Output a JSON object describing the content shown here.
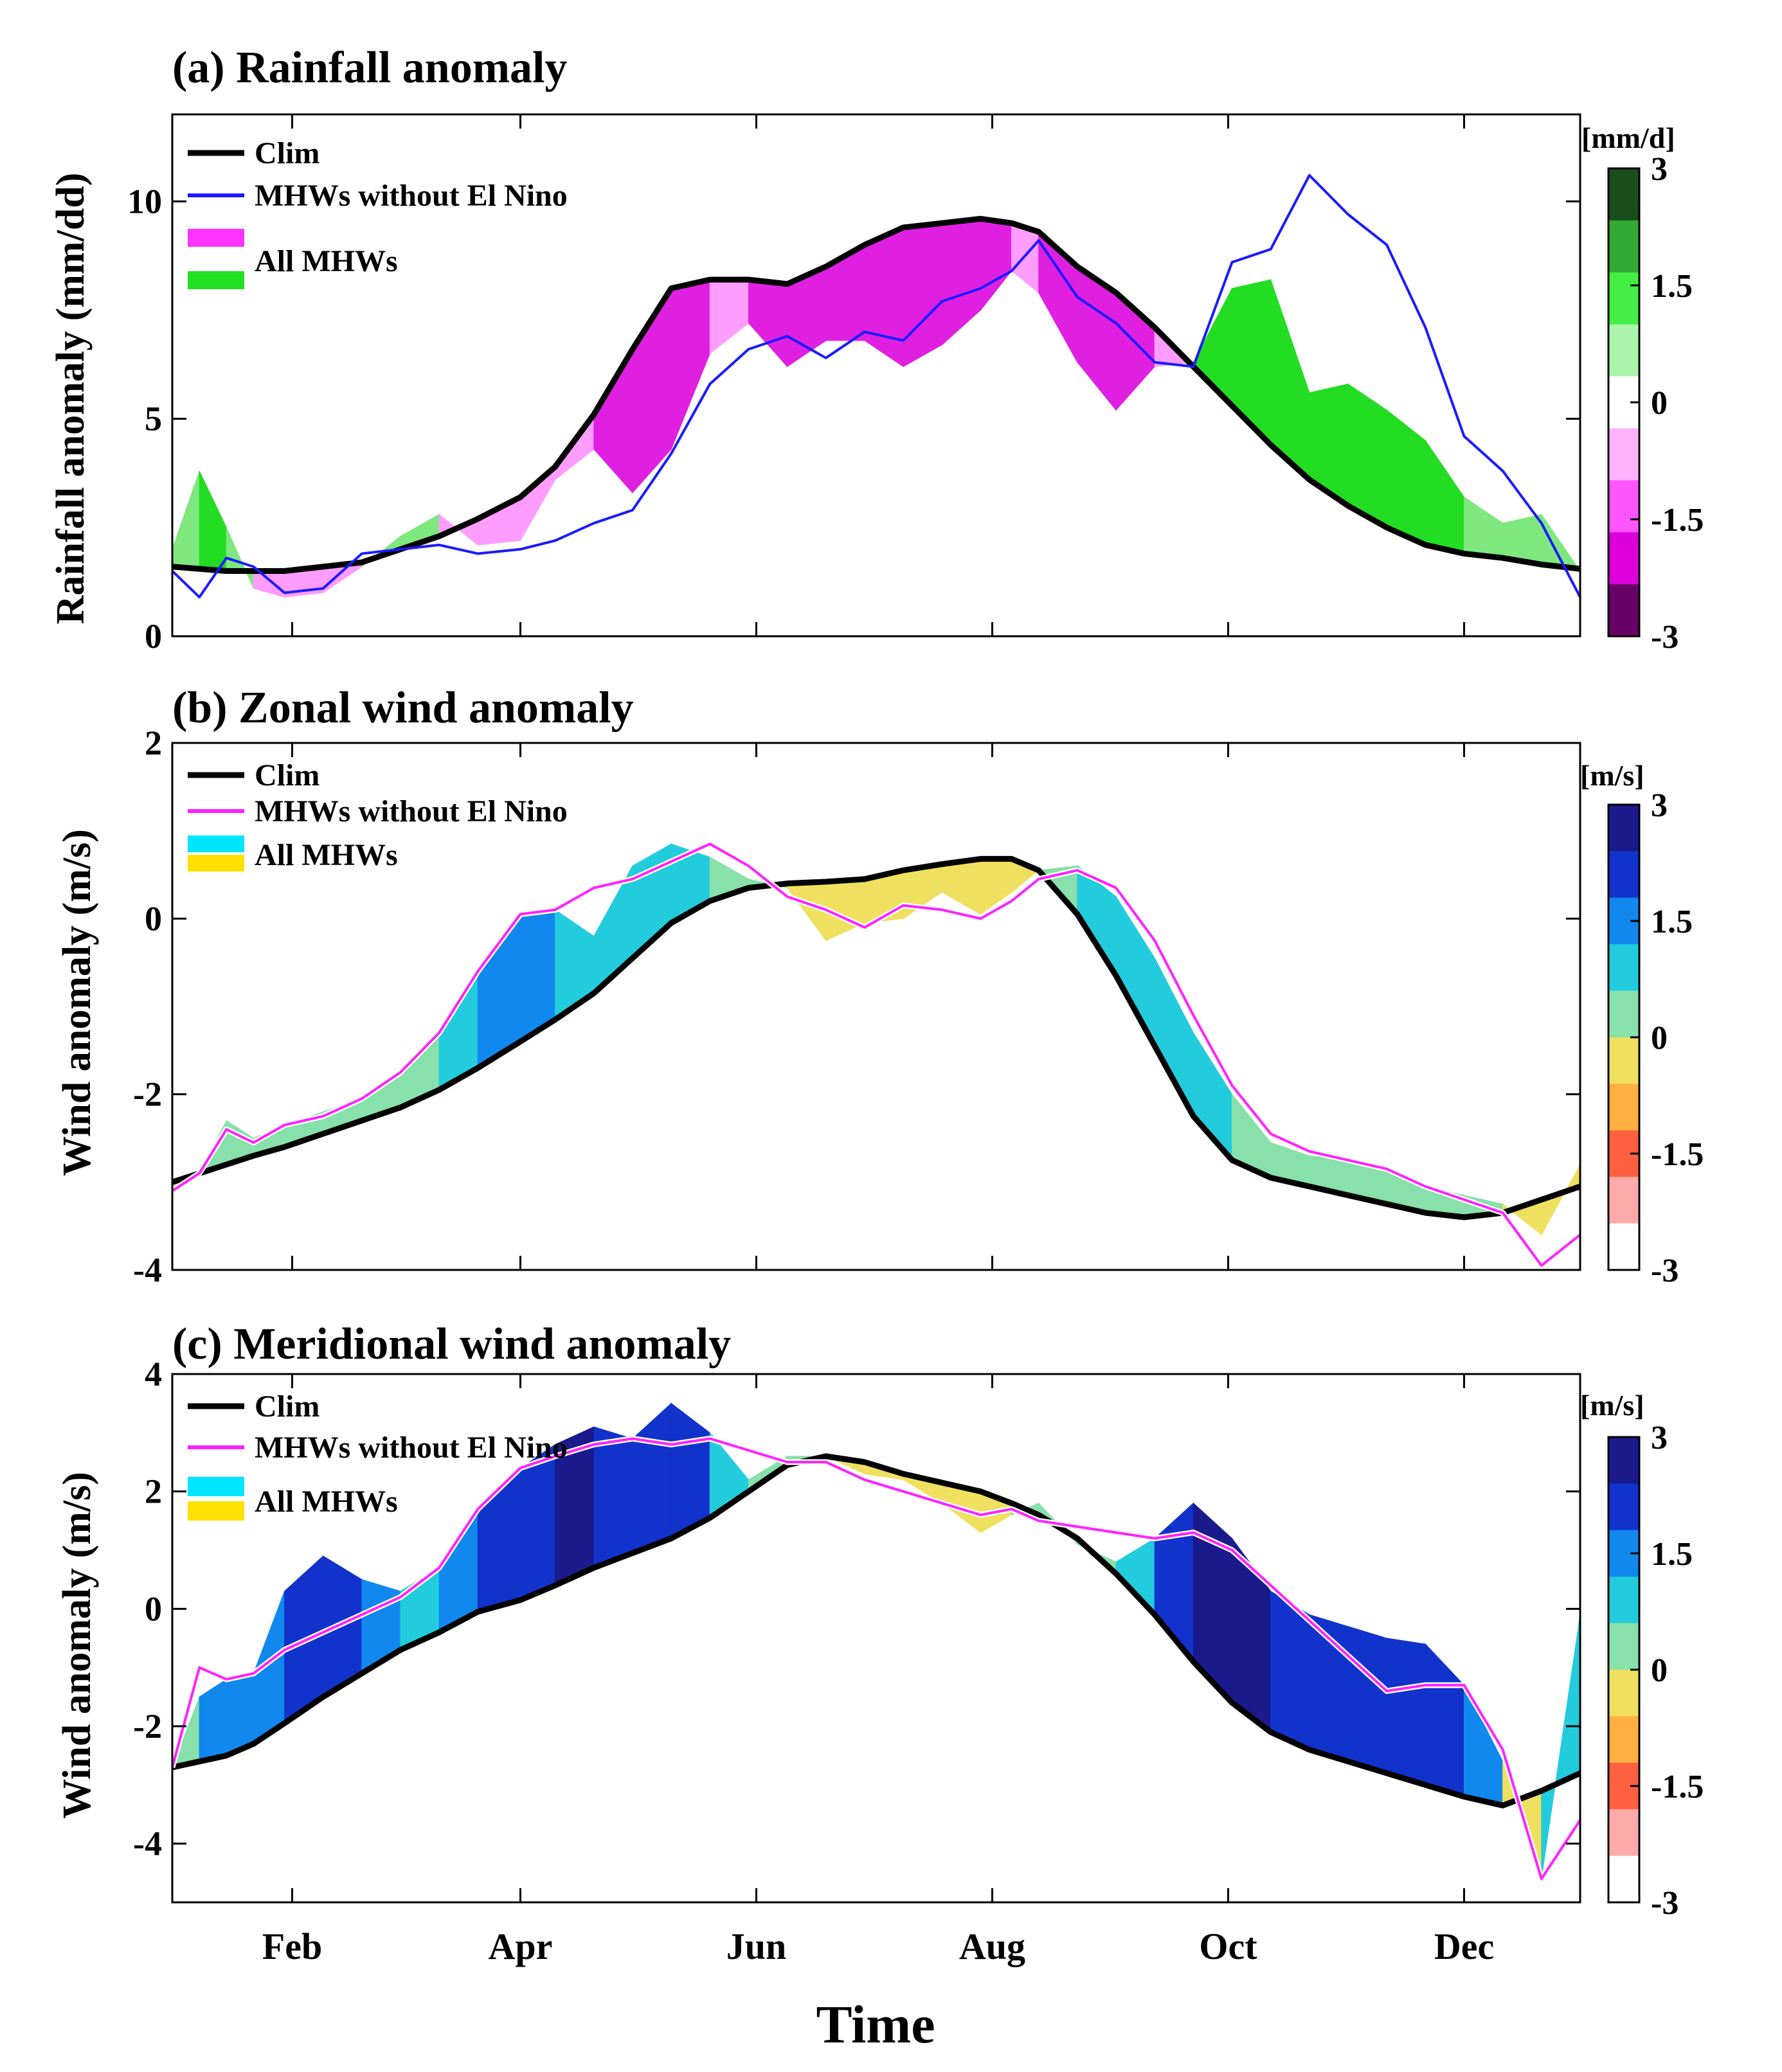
{
  "figure": {
    "xlabel": "Time"
  },
  "chart_data": [
    {
      "type": "area",
      "panel": "a",
      "title": "(a) Rainfall anomaly",
      "ylabel": "Rainfall anomaly (mm/dd)",
      "xlabel": "Time",
      "xlim": [
        1,
        365
      ],
      "ylim": [
        0,
        12
      ],
      "yticks": [
        0,
        5,
        10
      ],
      "months": [
        {
          "label": "Feb",
          "day": 32
        },
        {
          "label": "Apr",
          "day": 91
        },
        {
          "label": "Jun",
          "day": 152
        },
        {
          "label": "Aug",
          "day": 213
        },
        {
          "label": "Oct",
          "day": 274
        },
        {
          "label": "Dec",
          "day": 335
        }
      ],
      "legend": [
        "Clim",
        "MHWs without El Nino",
        "All MHWs"
      ],
      "legend_colors": {
        "clim": "#000000",
        "line": "#1a1aff",
        "fill_a": "#ff33ff",
        "fill_b": "#22e022"
      },
      "colorbar": {
        "unit": "[mm/d]",
        "range": [
          -3,
          3
        ],
        "ticks": [
          "3",
          "1.5",
          "0",
          "-1.5",
          "-3"
        ],
        "colors": [
          "#1a4d1a",
          "#33aa33",
          "#44ee44",
          "#aaf5aa",
          "#ffffff",
          "#ffb3ff",
          "#ff55ff",
          "#dd00dd",
          "#660066"
        ]
      },
      "x": [
        1,
        8,
        15,
        22,
        30,
        40,
        50,
        60,
        70,
        80,
        91,
        100,
        110,
        120,
        130,
        140,
        150,
        160,
        170,
        180,
        190,
        200,
        210,
        218,
        225,
        235,
        245,
        255,
        265,
        275,
        285,
        295,
        305,
        315,
        325,
        335,
        345,
        355,
        365
      ],
      "clim": [
        1.6,
        1.55,
        1.5,
        1.5,
        1.5,
        1.6,
        1.7,
        2.0,
        2.3,
        2.7,
        3.2,
        3.9,
        5.1,
        6.6,
        8.0,
        8.2,
        8.2,
        8.1,
        8.5,
        9.0,
        9.4,
        9.5,
        9.6,
        9.5,
        9.3,
        8.5,
        7.9,
        7.1,
        6.2,
        5.3,
        4.4,
        3.6,
        3.0,
        2.5,
        2.1,
        1.9,
        1.8,
        1.65,
        1.55
      ],
      "all_mhws": [
        2.0,
        3.8,
        2.5,
        1.1,
        0.9,
        1.0,
        1.6,
        2.3,
        2.8,
        2.1,
        2.2,
        3.6,
        4.3,
        3.3,
        4.3,
        6.5,
        7.2,
        6.2,
        6.8,
        6.8,
        6.2,
        6.7,
        7.5,
        8.4,
        7.9,
        6.3,
        5.2,
        6.2,
        6.3,
        8.0,
        8.2,
        5.6,
        5.8,
        5.2,
        4.5,
        3.2,
        2.6,
        2.8,
        1.5
      ],
      "line": [
        1.5,
        0.9,
        1.8,
        1.6,
        1.0,
        1.1,
        1.9,
        2.0,
        2.1,
        1.9,
        2.0,
        2.2,
        2.6,
        2.9,
        4.2,
        5.8,
        6.6,
        6.9,
        6.4,
        7.0,
        6.8,
        7.7,
        8.0,
        8.4,
        9.1,
        7.8,
        7.2,
        6.3,
        6.2,
        8.6,
        8.9,
        10.6,
        9.7,
        9.0,
        7.1,
        4.6,
        3.8,
        2.6,
        0.9
      ]
    },
    {
      "type": "area",
      "panel": "b",
      "title": "(b) Zonal wind anomaly",
      "ylabel": "Wind anomaly (m/s)",
      "xlabel": "Time",
      "xlim": [
        1,
        365
      ],
      "ylim": [
        -4,
        2
      ],
      "yticks": [
        -4,
        -2,
        0,
        2
      ],
      "months": [
        {
          "label": "Feb",
          "day": 32
        },
        {
          "label": "Apr",
          "day": 91
        },
        {
          "label": "Jun",
          "day": 152
        },
        {
          "label": "Aug",
          "day": 213
        },
        {
          "label": "Oct",
          "day": 274
        },
        {
          "label": "Dec",
          "day": 335
        }
      ],
      "legend": [
        "Clim",
        "MHWs without El Nino",
        "All MHWs"
      ],
      "legend_colors": {
        "clim": "#000000",
        "line": "#ff22ff",
        "fill_a": "#00e5ff",
        "fill_b": "#ffe000"
      },
      "colorbar": {
        "unit": "[m/s]",
        "range": [
          -3,
          3
        ],
        "ticks": [
          "3",
          "1.5",
          "0",
          "-1.5",
          "-3"
        ],
        "colors": [
          "#1a1a8c",
          "#1133cc",
          "#1188ee",
          "#22ccdd",
          "#88e0aa",
          "#f0e060",
          "#ffb040",
          "#ff6040",
          "#ffaaaa",
          "#ffffff"
        ]
      },
      "x": [
        1,
        8,
        15,
        22,
        30,
        40,
        50,
        60,
        70,
        80,
        91,
        100,
        110,
        120,
        130,
        140,
        150,
        160,
        170,
        180,
        190,
        200,
        210,
        218,
        225,
        235,
        245,
        255,
        265,
        275,
        285,
        295,
        305,
        315,
        325,
        335,
        345,
        355,
        365
      ],
      "clim": [
        -3.0,
        -2.9,
        -2.8,
        -2.7,
        -2.6,
        -2.45,
        -2.3,
        -2.15,
        -1.95,
        -1.7,
        -1.4,
        -1.15,
        -0.85,
        -0.45,
        -0.05,
        0.2,
        0.35,
        0.4,
        0.42,
        0.45,
        0.55,
        0.62,
        0.68,
        0.68,
        0.55,
        0.05,
        -0.65,
        -1.45,
        -2.25,
        -2.75,
        -2.95,
        -3.05,
        -3.15,
        -3.25,
        -3.35,
        -3.4,
        -3.35,
        -3.2,
        -3.05
      ],
      "all_mhws": [
        -3.1,
        -2.9,
        -2.3,
        -2.5,
        -2.35,
        -2.2,
        -2.05,
        -1.8,
        -1.3,
        -0.6,
        0.05,
        0.1,
        -0.2,
        0.6,
        0.85,
        0.7,
        0.45,
        0.35,
        -0.25,
        -0.05,
        0.0,
        0.3,
        0.05,
        0.3,
        0.55,
        0.6,
        0.25,
        -0.45,
        -1.3,
        -2.0,
        -2.55,
        -2.7,
        -2.75,
        -2.85,
        -3.05,
        -3.15,
        -3.25,
        -3.6,
        -2.8
      ],
      "line": [
        -3.1,
        -2.9,
        -2.4,
        -2.55,
        -2.35,
        -2.25,
        -2.05,
        -1.75,
        -1.3,
        -0.6,
        0.05,
        0.1,
        0.35,
        0.45,
        0.65,
        0.85,
        0.6,
        0.25,
        0.1,
        -0.1,
        0.15,
        0.1,
        0.0,
        0.2,
        0.45,
        0.55,
        0.35,
        -0.25,
        -1.1,
        -1.9,
        -2.45,
        -2.65,
        -2.75,
        -2.85,
        -3.05,
        -3.2,
        -3.35,
        -3.95,
        -3.6
      ]
    },
    {
      "type": "area",
      "panel": "c",
      "title": "(c) Meridional wind anomaly",
      "ylabel": "Wind anomaly (m/s)",
      "xlabel": "Time",
      "xlim": [
        1,
        365
      ],
      "ylim": [
        -5,
        4
      ],
      "yticks": [
        -4,
        -2,
        0,
        2,
        4
      ],
      "months": [
        {
          "label": "Feb",
          "day": 32
        },
        {
          "label": "Apr",
          "day": 91
        },
        {
          "label": "Jun",
          "day": 152
        },
        {
          "label": "Aug",
          "day": 213
        },
        {
          "label": "Oct",
          "day": 274
        },
        {
          "label": "Dec",
          "day": 335
        }
      ],
      "legend": [
        "Clim",
        "MHWs without El Nino",
        "All MHWs"
      ],
      "legend_colors": {
        "clim": "#000000",
        "line": "#ff22ff",
        "fill_a": "#00e5ff",
        "fill_b": "#ffe000"
      },
      "colorbar": {
        "unit": "[m/s]",
        "range": [
          -3,
          3
        ],
        "ticks": [
          "3",
          "1.5",
          "0",
          "-1.5",
          "-3"
        ],
        "colors": [
          "#1a1a8c",
          "#1133cc",
          "#1188ee",
          "#22ccdd",
          "#88e0aa",
          "#f0e060",
          "#ffb040",
          "#ff6040",
          "#ffaaaa",
          "#ffffff"
        ]
      },
      "x": [
        1,
        8,
        15,
        22,
        30,
        40,
        50,
        60,
        70,
        80,
        91,
        100,
        110,
        120,
        130,
        140,
        150,
        160,
        170,
        180,
        190,
        200,
        210,
        218,
        225,
        235,
        245,
        255,
        265,
        275,
        285,
        295,
        305,
        315,
        325,
        335,
        345,
        355,
        365
      ],
      "clim": [
        -2.7,
        -2.6,
        -2.5,
        -2.3,
        -1.95,
        -1.5,
        -1.1,
        -0.7,
        -0.4,
        -0.05,
        0.15,
        0.4,
        0.7,
        0.95,
        1.2,
        1.55,
        2.0,
        2.45,
        2.6,
        2.5,
        2.3,
        2.15,
        2.0,
        1.8,
        1.6,
        1.2,
        0.6,
        -0.1,
        -0.9,
        -1.6,
        -2.1,
        -2.4,
        -2.6,
        -2.8,
        -3.0,
        -3.2,
        -3.35,
        -3.1,
        -2.8
      ],
      "all_mhws": [
        -2.7,
        -1.5,
        -1.2,
        -1.1,
        0.3,
        0.9,
        0.5,
        0.3,
        0.7,
        1.7,
        2.4,
        2.8,
        3.1,
        2.9,
        3.5,
        3.0,
        2.2,
        2.6,
        2.6,
        2.3,
        2.2,
        1.8,
        1.3,
        1.6,
        1.8,
        1.1,
        0.8,
        1.2,
        1.8,
        1.2,
        0.3,
        -0.1,
        -0.3,
        -0.5,
        -0.6,
        -1.3,
        -2.6,
        -4.6,
        -0.1
      ],
      "line": [
        -2.7,
        -1.0,
        -1.2,
        -1.1,
        -0.7,
        -0.4,
        -0.1,
        0.2,
        0.7,
        1.7,
        2.4,
        2.6,
        2.8,
        2.9,
        2.8,
        2.9,
        2.7,
        2.5,
        2.5,
        2.2,
        2.0,
        1.8,
        1.6,
        1.7,
        1.5,
        1.4,
        1.3,
        1.2,
        1.3,
        1.0,
        0.4,
        -0.2,
        -0.8,
        -1.4,
        -1.3,
        -1.3,
        -2.4,
        -4.6,
        -3.6
      ]
    }
  ]
}
